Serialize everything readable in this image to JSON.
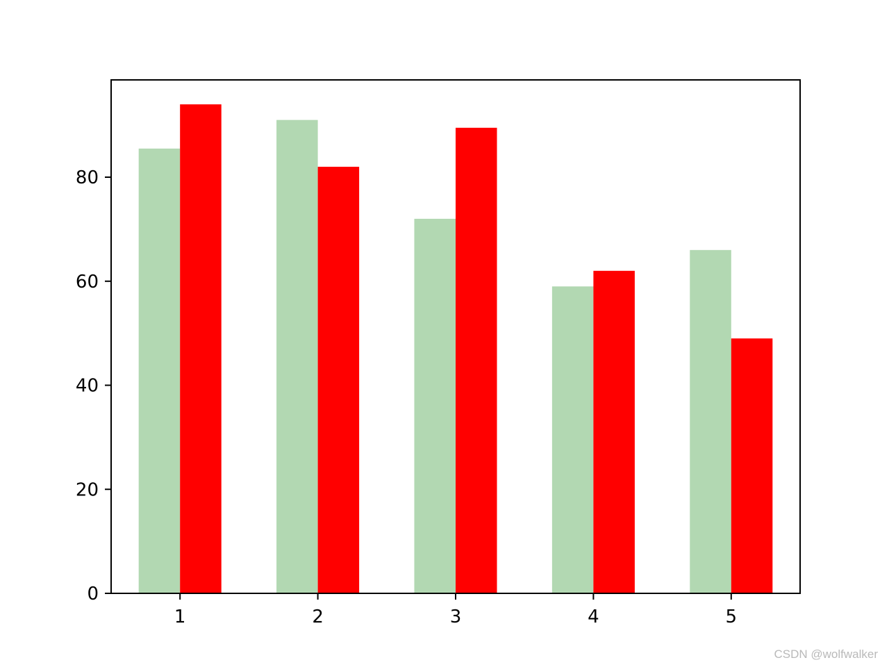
{
  "chart_data": {
    "type": "bar",
    "categories": [
      "1",
      "2",
      "3",
      "4",
      "5"
    ],
    "x": [
      1,
      2,
      3,
      4,
      5
    ],
    "series": [
      {
        "values": [
          85.5,
          91,
          72,
          59,
          66
        ],
        "color": "#b2d8b2"
      },
      {
        "values": [
          94,
          82,
          89.5,
          62,
          49
        ],
        "color": "#ff0000"
      }
    ],
    "title": "",
    "xlabel": "",
    "ylabel": "",
    "xlim": [
      0.5,
      5.5
    ],
    "ylim": [
      0,
      98.7
    ],
    "yticks": [
      0,
      20,
      40,
      60,
      80
    ],
    "xticks": [
      1,
      2,
      3,
      4,
      5
    ],
    "bar_width": 0.3,
    "grid": false
  },
  "watermark": "CSDN @wolfwalker"
}
